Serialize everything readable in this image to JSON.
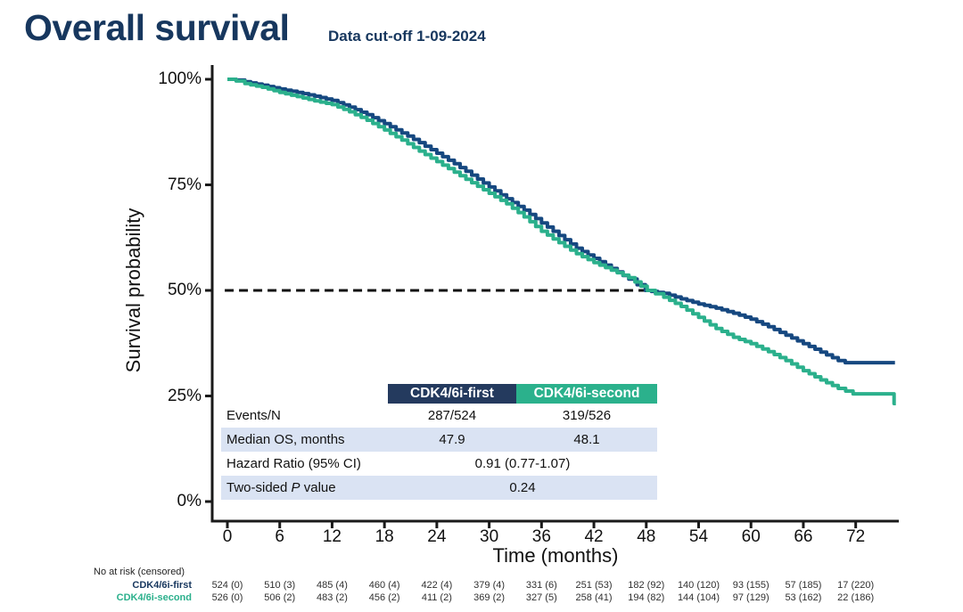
{
  "header": {
    "title": "Overall survival",
    "subtitle": "Data cut-off 1-09-2024"
  },
  "colors": {
    "title_navy": "#17375E",
    "curve_navy": "#164880",
    "curve_teal": "#2BB08C",
    "header_navy_bg": "#243A5E",
    "header_teal_bg": "#2BB18C",
    "shaded_row_bg": "#DAE3F3",
    "axis": "#1a1a1a"
  },
  "chart_data": {
    "type": "line",
    "subtype": "kaplan-meier-step",
    "title": "Overall survival",
    "xlabel": "Time (months)",
    "ylabel": "Survival probability",
    "xlim": [
      0,
      77
    ],
    "ylim": [
      0,
      100
    ],
    "grid": false,
    "x_ticks": [
      0,
      6,
      12,
      18,
      24,
      30,
      36,
      42,
      48,
      54,
      60,
      66,
      72
    ],
    "y_ticks": [
      {
        "label": "100%",
        "value": 100
      },
      {
        "label": "75%",
        "value": 75
      },
      {
        "label": "50%",
        "value": 50
      },
      {
        "label": "25%",
        "value": 25
      },
      {
        "label": "0%",
        "value": 0
      }
    ],
    "reference_line": {
      "y": 50,
      "style": "dashed",
      "x_start": -0.3,
      "x_end": 48.8,
      "color": "#111111"
    },
    "series": [
      {
        "name": "CDK4/6i-first",
        "color": "#164880",
        "points": [
          [
            0,
            100
          ],
          [
            1,
            99.8
          ],
          [
            2,
            99.4
          ],
          [
            4,
            98.6
          ],
          [
            6,
            97.7
          ],
          [
            8,
            96.9
          ],
          [
            10,
            96.0
          ],
          [
            12,
            95.0
          ],
          [
            14,
            93.4
          ],
          [
            16,
            91.6
          ],
          [
            18,
            89.5
          ],
          [
            20,
            87.3
          ],
          [
            22,
            85.0
          ],
          [
            24,
            82.5
          ],
          [
            26,
            80.0
          ],
          [
            28,
            77.3
          ],
          [
            30,
            74.5
          ],
          [
            32,
            71.7
          ],
          [
            34,
            69.0
          ],
          [
            36,
            66.0
          ],
          [
            38,
            63.0
          ],
          [
            40,
            60.0
          ],
          [
            42,
            57.6
          ],
          [
            44,
            55.2
          ],
          [
            46,
            52.7
          ],
          [
            47.9,
            50.0
          ],
          [
            50,
            49.3
          ],
          [
            52,
            48.0
          ],
          [
            54,
            46.8
          ],
          [
            56,
            45.8
          ],
          [
            58,
            44.6
          ],
          [
            60,
            43.2
          ],
          [
            62,
            41.4
          ],
          [
            64,
            39.4
          ],
          [
            66,
            37.4
          ],
          [
            68,
            35.4
          ],
          [
            70,
            33.4
          ],
          [
            70.8,
            32.9
          ],
          [
            76.5,
            32.9
          ]
        ]
      },
      {
        "name": "CDK4/6i-second",
        "color": "#2BB08C",
        "points": [
          [
            0,
            100
          ],
          [
            1,
            99.6
          ],
          [
            2,
            99.0
          ],
          [
            4,
            98.1
          ],
          [
            6,
            96.9
          ],
          [
            8,
            95.9
          ],
          [
            10,
            94.9
          ],
          [
            12,
            94.0
          ],
          [
            14,
            92.3
          ],
          [
            16,
            90.3
          ],
          [
            18,
            88.0
          ],
          [
            20,
            85.6
          ],
          [
            22,
            83.0
          ],
          [
            24,
            80.5
          ],
          [
            26,
            78.0
          ],
          [
            28,
            75.5
          ],
          [
            30,
            73.0
          ],
          [
            32,
            70.5
          ],
          [
            34,
            67.4
          ],
          [
            36,
            64.0
          ],
          [
            38,
            61.3
          ],
          [
            40,
            58.7
          ],
          [
            42,
            56.6
          ],
          [
            44,
            54.8
          ],
          [
            46,
            53.0
          ],
          [
            48.1,
            50.0
          ],
          [
            50,
            48.4
          ],
          [
            52,
            46.2
          ],
          [
            54,
            43.6
          ],
          [
            56,
            41.0
          ],
          [
            58,
            38.9
          ],
          [
            60,
            37.4
          ],
          [
            62,
            35.5
          ],
          [
            64,
            33.4
          ],
          [
            66,
            31.0
          ],
          [
            68,
            28.8
          ],
          [
            70,
            26.8
          ],
          [
            71.7,
            25.5
          ],
          [
            76.2,
            25.5
          ],
          [
            76.4,
            23.2
          ],
          [
            76.6,
            23.2
          ]
        ]
      }
    ]
  },
  "stats_table": {
    "columns": [
      {
        "label": "CDK4/6i-first",
        "bg": "#243A5E"
      },
      {
        "label": "CDK4/6i-second",
        "bg": "#2BB18C"
      }
    ],
    "rows": [
      {
        "label_parts": [
          "Events/N"
        ],
        "values": [
          "287/524",
          "319/526"
        ],
        "span": false,
        "shaded": false
      },
      {
        "label_parts": [
          "Median OS, months"
        ],
        "values": [
          "47.9",
          "48.1"
        ],
        "span": false,
        "shaded": true
      },
      {
        "label_parts": [
          "Hazard Ratio (95% CI)"
        ],
        "values": [
          "0.91 (0.77-1.07)"
        ],
        "span": true,
        "shaded": false
      },
      {
        "label_parts": [
          "Two-sided ",
          "P",
          " value"
        ],
        "italic_index": 1,
        "values": [
          "0.24"
        ],
        "span": true,
        "shaded": true
      }
    ]
  },
  "risk_table": {
    "caption": "No at risk (censored)",
    "times": [
      0,
      6,
      12,
      18,
      24,
      30,
      36,
      42,
      48,
      54,
      60,
      66,
      72
    ],
    "rows": [
      {
        "name": "CDK4/6i-first",
        "color": "#17375E",
        "values": [
          "524 (0)",
          "510 (3)",
          "485 (4)",
          "460 (4)",
          "422 (4)",
          "379 (4)",
          "331 (6)",
          "251 (53)",
          "182 (92)",
          "140 (120)",
          "93 (155)",
          "57 (185)",
          "17 (220)"
        ]
      },
      {
        "name": "CDK4/6i-second",
        "color": "#2BB08C",
        "values": [
          "526 (0)",
          "506 (2)",
          "483 (2)",
          "456 (2)",
          "411 (2)",
          "369 (2)",
          "327 (5)",
          "258 (41)",
          "194 (82)",
          "144 (104)",
          "97 (129)",
          "53 (162)",
          "22 (186)"
        ]
      }
    ]
  }
}
